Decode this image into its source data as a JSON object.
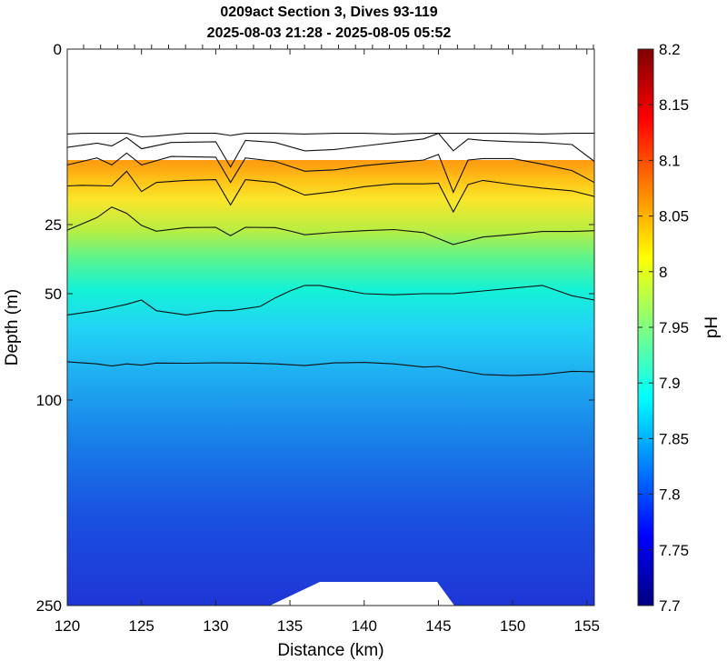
{
  "chart_data": {
    "type": "contour",
    "title_line1": "0209act Section 3, Dives 93-119",
    "title_line2": "2025-08-03 21:28 - 2025-08-05 05:52",
    "xlabel": "Distance (km)",
    "ylabel": "Depth (m)",
    "colorbar_label": "pH",
    "xlim": [
      120,
      155.5
    ],
    "x_ticks": [
      "120",
      "125",
      "130",
      "135",
      "140",
      "145",
      "150",
      "155"
    ],
    "y_ticks": [
      "0",
      "25",
      "50",
      "100",
      "250"
    ],
    "y_scale": "nonlinear (compressed at depth)",
    "colorbar_range": [
      7.7,
      8.2
    ],
    "colorbar_ticks": [
      "8.2",
      "8.15",
      "8.1",
      "8.05",
      "8",
      "7.95",
      "7.9",
      "7.85",
      "7.8",
      "7.75",
      "7.7"
    ],
    "colormap": "jet",
    "contour_levels": [
      8.08,
      8.06,
      8.04,
      8.02,
      7.98,
      7.88,
      7.8
    ],
    "contour_lines": [
      {
        "level": 8.08,
        "x": [
          120,
          121,
          123,
          124,
          125,
          126,
          128,
          130,
          131,
          132,
          134,
          136,
          138,
          140,
          142,
          144,
          145,
          146,
          148,
          150,
          152,
          154,
          155.5
        ],
        "depth": [
          12.1,
          12,
          12,
          12,
          12.5,
          12.4,
          12,
          12,
          12.3,
          12,
          12,
          12.1,
          12,
          12,
          12.1,
          12,
          12,
          12,
          12,
          12,
          12.1,
          12,
          12
        ]
      },
      {
        "level": 8.06,
        "x": [
          120,
          122,
          123,
          124,
          125,
          127,
          130,
          131,
          132,
          134,
          136,
          138,
          140,
          142,
          144,
          145,
          146,
          147,
          148,
          150,
          152,
          154,
          155.5
        ],
        "depth": [
          14,
          13.4,
          13.8,
          12.6,
          14.2,
          13.3,
          13.2,
          16.8,
          13,
          13.3,
          14.5,
          14.3,
          13.8,
          13.3,
          12.8,
          12,
          14.5,
          12.8,
          13,
          13.2,
          13.3,
          13.6,
          16
        ]
      },
      {
        "level": 8.04,
        "x": [
          120,
          122,
          123,
          124,
          125,
          127,
          130,
          131,
          132,
          134,
          136,
          138,
          140,
          142,
          144,
          145,
          146,
          147,
          148,
          150,
          152,
          154,
          155.5
        ],
        "depth": [
          16.5,
          15.5,
          16.5,
          14.8,
          16.5,
          15.3,
          15.4,
          19,
          15.5,
          16,
          17.4,
          17.2,
          16.6,
          16.2,
          15.8,
          15,
          20.4,
          15.8,
          15.6,
          15.6,
          16.4,
          17.3,
          19
        ]
      },
      {
        "level": 8.02,
        "x": [
          120,
          121,
          123,
          124,
          125,
          126,
          128,
          130,
          131,
          132,
          134,
          136,
          138,
          140,
          142,
          144,
          145,
          146,
          147,
          148,
          150,
          152,
          154,
          155.5
        ],
        "depth": [
          19.5,
          19.4,
          19.5,
          17.4,
          20.3,
          19,
          18.7,
          18.6,
          22.2,
          18.6,
          19,
          20.8,
          20.3,
          19.6,
          19.2,
          19.2,
          19.1,
          23.2,
          19.3,
          18.7,
          19.3,
          19.8,
          20.2,
          21
        ]
      },
      {
        "level": 7.98,
        "x": [
          120,
          122,
          123,
          124,
          125,
          126,
          128,
          130,
          131,
          132,
          134,
          135,
          136,
          138,
          140,
          142,
          144,
          146,
          148,
          150,
          152,
          154,
          155.5
        ],
        "depth": [
          27,
          24,
          22.5,
          23.4,
          25.3,
          27.4,
          26.1,
          26,
          29,
          26,
          26.1,
          27.3,
          28.7,
          27.8,
          27.2,
          26.8,
          27.9,
          32.2,
          29.5,
          28.6,
          27.5,
          27.5,
          27.2
        ]
      },
      {
        "level": 7.88,
        "x": [
          120,
          122,
          124,
          125,
          126,
          128,
          130,
          131,
          132,
          133,
          134,
          135,
          136,
          137,
          138,
          140,
          142,
          144,
          146,
          148,
          150,
          152,
          154,
          155.5
        ],
        "depth": [
          60,
          58,
          55,
          53,
          58,
          60,
          58,
          58,
          57,
          56,
          52,
          49,
          47,
          47,
          48,
          50,
          50.5,
          50,
          50,
          49,
          48,
          47,
          51,
          53
        ]
      },
      {
        "level": 7.8,
        "x": [
          120,
          122,
          123,
          124,
          125,
          126,
          128,
          130,
          132,
          134,
          136,
          138,
          140,
          142,
          144,
          145,
          146,
          148,
          150,
          152,
          154,
          155.5
        ],
        "depth": [
          82,
          83,
          84,
          83,
          83.6,
          82.6,
          82.7,
          82.5,
          82.6,
          83,
          83.8,
          82.5,
          82.3,
          83,
          84.5,
          84.2,
          85.6,
          88,
          88.5,
          88,
          86.5,
          86.7
        ]
      }
    ]
  }
}
